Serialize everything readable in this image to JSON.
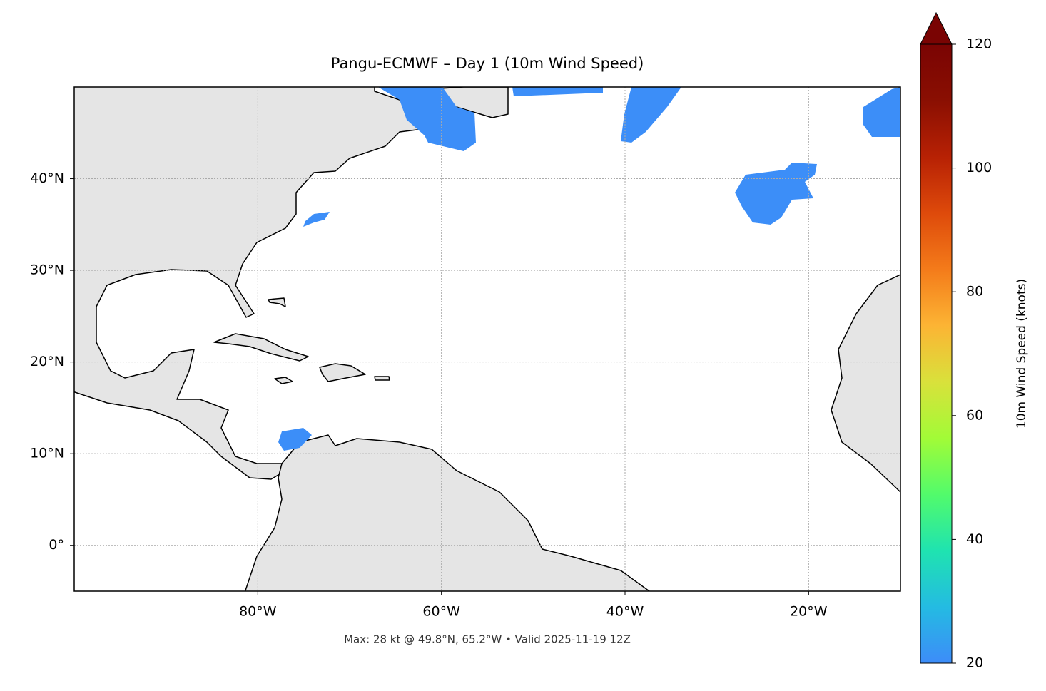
{
  "chart_data": {
    "type": "map",
    "title": "Pangu-ECMWF – Day 1 (10m Wind Speed)",
    "footer": "Max: 28 kt @ 49.8°N, 65.2°W • Valid 2025-11-19 12Z",
    "xlim": [
      -100,
      -10
    ],
    "ylim": [
      -5,
      50
    ],
    "xticks": [
      {
        "value": -80,
        "label": "80°W"
      },
      {
        "value": -60,
        "label": "60°W"
      },
      {
        "value": -40,
        "label": "40°W"
      },
      {
        "value": -20,
        "label": "20°W"
      }
    ],
    "yticks": [
      {
        "value": 0,
        "label": "0°"
      },
      {
        "value": 10,
        "label": "10°N"
      },
      {
        "value": 20,
        "label": "20°N"
      },
      {
        "value": 30,
        "label": "30°N"
      },
      {
        "value": 40,
        "label": "40°N"
      }
    ],
    "grid": true,
    "colorbar": {
      "label": "10m Wind Speed (knots)",
      "lim": [
        20,
        120
      ],
      "ticks": [
        20,
        40,
        60,
        80,
        100,
        120
      ],
      "extend": "max",
      "colors": [
        "#3d8cf9",
        "#24bbe2",
        "#1fe3b0",
        "#52fb6b",
        "#a2fb37",
        "#d9e13b",
        "#fcb434",
        "#f47b1a",
        "#de4a0b",
        "#b72104",
        "#8a0f02",
        "#7a0403"
      ]
    }
  }
}
